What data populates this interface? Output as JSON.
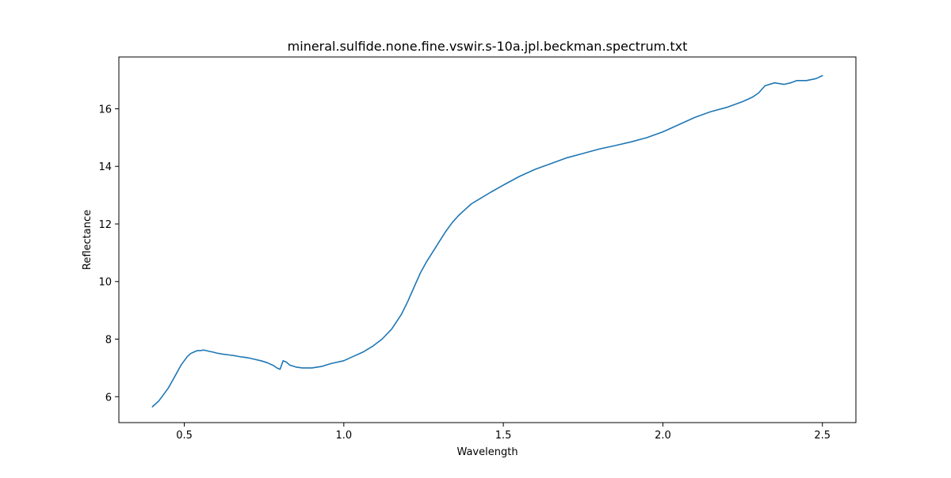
{
  "chart_data": {
    "type": "line",
    "title": "mineral.sulfide.none.fine.vswir.s-10a.jpl.beckman.spectrum.txt",
    "xlabel": "Wavelength",
    "ylabel": "Reflectance",
    "xlim": [
      0.295,
      2.605
    ],
    "ylim": [
      5.1,
      17.8
    ],
    "xticks": [
      0.5,
      1.0,
      1.5,
      2.0,
      2.5
    ],
    "xtick_labels": [
      "0.5",
      "1.0",
      "1.5",
      "2.0",
      "2.5"
    ],
    "yticks": [
      6,
      8,
      10,
      12,
      14,
      16
    ],
    "ytick_labels": [
      "6",
      "8",
      "10",
      "12",
      "14",
      "16"
    ],
    "grid": false,
    "legend": "none",
    "line_color": "#1f77b4",
    "series": [
      {
        "x": [
          0.4,
          0.41,
          0.42,
          0.43,
          0.44,
          0.45,
          0.46,
          0.47,
          0.48,
          0.49,
          0.5,
          0.51,
          0.52,
          0.53,
          0.54,
          0.55,
          0.56,
          0.57,
          0.58,
          0.59,
          0.6,
          0.62,
          0.64,
          0.66,
          0.68,
          0.7,
          0.72,
          0.74,
          0.76,
          0.78,
          0.79,
          0.8,
          0.81,
          0.82,
          0.83,
          0.85,
          0.87,
          0.9,
          0.93,
          0.96,
          1.0,
          1.03,
          1.06,
          1.09,
          1.12,
          1.15,
          1.18,
          1.2,
          1.22,
          1.24,
          1.26,
          1.28,
          1.3,
          1.32,
          1.34,
          1.36,
          1.38,
          1.4,
          1.43,
          1.46,
          1.5,
          1.55,
          1.6,
          1.65,
          1.7,
          1.75,
          1.8,
          1.85,
          1.9,
          1.95,
          2.0,
          2.05,
          2.1,
          2.15,
          2.2,
          2.25,
          2.28,
          2.3,
          2.32,
          2.35,
          2.38,
          2.4,
          2.42,
          2.45,
          2.48,
          2.5
        ],
        "y": [
          5.65,
          5.75,
          5.85,
          6.0,
          6.15,
          6.3,
          6.5,
          6.7,
          6.9,
          7.1,
          7.25,
          7.4,
          7.5,
          7.55,
          7.6,
          7.6,
          7.62,
          7.6,
          7.57,
          7.55,
          7.52,
          7.48,
          7.45,
          7.42,
          7.38,
          7.35,
          7.3,
          7.25,
          7.18,
          7.08,
          7.0,
          6.95,
          7.25,
          7.2,
          7.1,
          7.03,
          7.0,
          7.0,
          7.05,
          7.15,
          7.25,
          7.4,
          7.55,
          7.75,
          8.0,
          8.35,
          8.85,
          9.3,
          9.8,
          10.3,
          10.7,
          11.05,
          11.4,
          11.75,
          12.05,
          12.3,
          12.5,
          12.7,
          12.9,
          13.1,
          13.35,
          13.65,
          13.9,
          14.1,
          14.3,
          14.45,
          14.6,
          14.72,
          14.85,
          15.0,
          15.2,
          15.45,
          15.7,
          15.9,
          16.05,
          16.25,
          16.4,
          16.55,
          16.8,
          16.9,
          16.85,
          16.9,
          16.98,
          16.98,
          17.05,
          17.15
        ]
      }
    ]
  }
}
